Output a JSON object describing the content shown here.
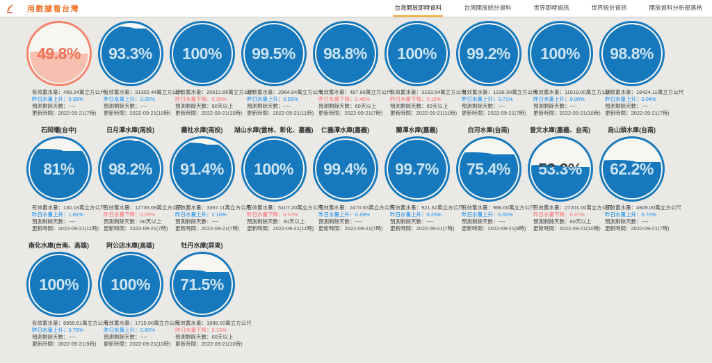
{
  "header": {
    "logo_text": "用數據看台灣",
    "nav_items": [
      {
        "label": "台灣開放即時資料",
        "active": true
      },
      {
        "label": "台灣開放統計資料",
        "active": false
      },
      {
        "label": "世界即時資訊",
        "active": false
      },
      {
        "label": "世界統計資訊",
        "active": false
      },
      {
        "label": "開放資料分析部落格",
        "active": false
      }
    ]
  },
  "labels": {
    "storage_prefix": "有效蓄水量：",
    "storage_unit": "萬立方公尺",
    "rise_prefix": "昨日水量上升：",
    "fall_prefix": "昨日水量下降：",
    "days_prefix": "預測剩餘天數：",
    "updated_prefix": "更新時間："
  },
  "colors": {
    "blue": "#1779BD",
    "blue_percent_text": "#C9E6F8",
    "orange": "#F4846C",
    "orange_water": "#F6BFAF",
    "rise_text": "#0D8BF2",
    "fall_text": "#FF6A6A",
    "active_tab_underline": "#F5A623",
    "brand_text": "#F0772B"
  },
  "reservoirs": [
    {
      "name": "",
      "percent_label": "49.8%",
      "percent": 49.8,
      "theme": "orange",
      "storage": "499.24",
      "change_dir": "rise",
      "change": "0.99%",
      "days": "----",
      "updated": "2022-09-21(7時)"
    },
    {
      "name": "",
      "percent_label": "93.3%",
      "percent": 93.3,
      "theme": "blue",
      "storage": "31302.44",
      "change_dir": "rise",
      "change": "0.25%",
      "days": "----",
      "updated": "2022-09-21(10時)"
    },
    {
      "name": "",
      "percent_label": "100%",
      "percent": 100,
      "theme": "blue",
      "storage": "20612.85",
      "change_dir": "fall",
      "change": "0.30%",
      "days": "60天以上",
      "updated": "2022-09-21(10時)"
    },
    {
      "name": "",
      "percent_label": "99.5%",
      "percent": 99.5,
      "theme": "blue",
      "storage": "2984.84",
      "change_dir": "rise",
      "change": "0.59%",
      "days": "----",
      "updated": "2022-09-21(11時)"
    },
    {
      "name": "",
      "percent_label": "98.8%",
      "percent": 98.8,
      "theme": "blue",
      "storage": "497.66",
      "change_dir": "fall",
      "change": "0.46%",
      "days": "60天以上",
      "updated": "2022-09-21(7時)"
    },
    {
      "name": "",
      "percent_label": "100%",
      "percent": 100,
      "theme": "blue",
      "storage": "3163.54",
      "change_dir": "fall",
      "change": "0.15%",
      "days": "60天以上",
      "updated": "2022-09-21(11時)"
    },
    {
      "name": "",
      "percent_label": "99.2%",
      "percent": 99.2,
      "theme": "blue",
      "storage": "1236.30",
      "change_dir": "rise",
      "change": "0.71%",
      "days": "----",
      "updated": "2022-09-21(7時)"
    },
    {
      "name": "",
      "percent_label": "100%",
      "percent": 100,
      "theme": "blue",
      "storage": "11619.00",
      "change_dir": "rise",
      "change": "0.00%",
      "days": "----",
      "updated": "2022-09-21(10時)"
    },
    {
      "name": "",
      "percent_label": "98.8%",
      "percent": 98.8,
      "theme": "blue",
      "storage": "18424.11",
      "change_dir": "rise",
      "change": "0.04%",
      "days": "----",
      "updated": "2022-09-21(7時)"
    },
    {
      "name": "石岡壩(台中)",
      "percent_label": "81%",
      "percent": 81,
      "theme": "blue",
      "storage": "130.18",
      "change_dir": "rise",
      "change": "1.81%",
      "days": "----",
      "updated": "2022-09-21(11時)"
    },
    {
      "name": "日月潭水庫(南投)",
      "percent_label": "98.2%",
      "percent": 98.2,
      "theme": "blue",
      "storage": "12736.69",
      "change_dir": "fall",
      "change": "0.05%",
      "days": "60天以上",
      "updated": "2022-09-21(7時)"
    },
    {
      "name": "霧社水庫(南投)",
      "percent_label": "91.4%",
      "percent": 91.4,
      "theme": "blue",
      "storage": "3367.11",
      "change_dir": "rise",
      "change": "2.10%",
      "days": "----",
      "updated": "2022-09-21(7時)"
    },
    {
      "name": "湖山水庫(雲林、彰化、嘉義)",
      "percent_label": "100%",
      "percent": 100,
      "theme": "blue",
      "storage": "5107.20",
      "change_dir": "fall",
      "change": "0.10%",
      "days": "60天以上",
      "updated": "2022-09-21(11時)"
    },
    {
      "name": "仁義潭水庫(嘉義)",
      "percent_label": "99.4%",
      "percent": 99.4,
      "theme": "blue",
      "storage": "2470.65",
      "change_dir": "rise",
      "change": "0.19%",
      "days": "----",
      "updated": "2022-09-21(7時)"
    },
    {
      "name": "蘭潭水庫(嘉義)",
      "percent_label": "99.7%",
      "percent": 99.7,
      "theme": "blue",
      "storage": "921.62",
      "change_dir": "rise",
      "change": "0.25%",
      "days": "----",
      "updated": "2022-09-21(7時)"
    },
    {
      "name": "白河水庫(台南)",
      "percent_label": "75.4%",
      "percent": 75.4,
      "theme": "blue",
      "storage": "986.00",
      "change_dir": "rise",
      "change": "0.00%",
      "days": "----",
      "updated": "2022-09-21(8時)"
    },
    {
      "name": "曾文水庫(嘉義、台南)",
      "percent_label": "53.3%",
      "percent": 53.3,
      "theme": "blue",
      "storage": "27201.00",
      "change_dir": "fall",
      "change": "0.47%",
      "days": "60天以上",
      "updated": "2022-09-21(10時)"
    },
    {
      "name": "烏山頭水庫(台南)",
      "percent_label": "62.2%",
      "percent": 62.2,
      "theme": "blue",
      "storage": "4928.00",
      "change_dir": "rise",
      "change": "0.70%",
      "days": "----",
      "updated": "2022-09-21(7時)"
    },
    {
      "name": "南化水庫(台南、高雄)",
      "percent_label": "100%",
      "percent": 100,
      "theme": "blue",
      "storage": "8955.61",
      "change_dir": "rise",
      "change": "0.79%",
      "days": "----",
      "updated": "2022-09-21(9時)"
    },
    {
      "name": "阿公店水庫(高雄)",
      "percent_label": "100%",
      "percent": 100,
      "theme": "blue",
      "storage": "1715.00",
      "change_dir": "rise",
      "change": "0.60%",
      "days": "----",
      "updated": "2022-09-21(10時)"
    },
    {
      "name": "牡丹水庫(屏東)",
      "percent_label": "71.5%",
      "percent": 71.5,
      "theme": "blue",
      "storage": "1898.00",
      "change_dir": "fall",
      "change": "0.13%",
      "days": "60天以上",
      "updated": "2022-09-21(10時)"
    }
  ]
}
